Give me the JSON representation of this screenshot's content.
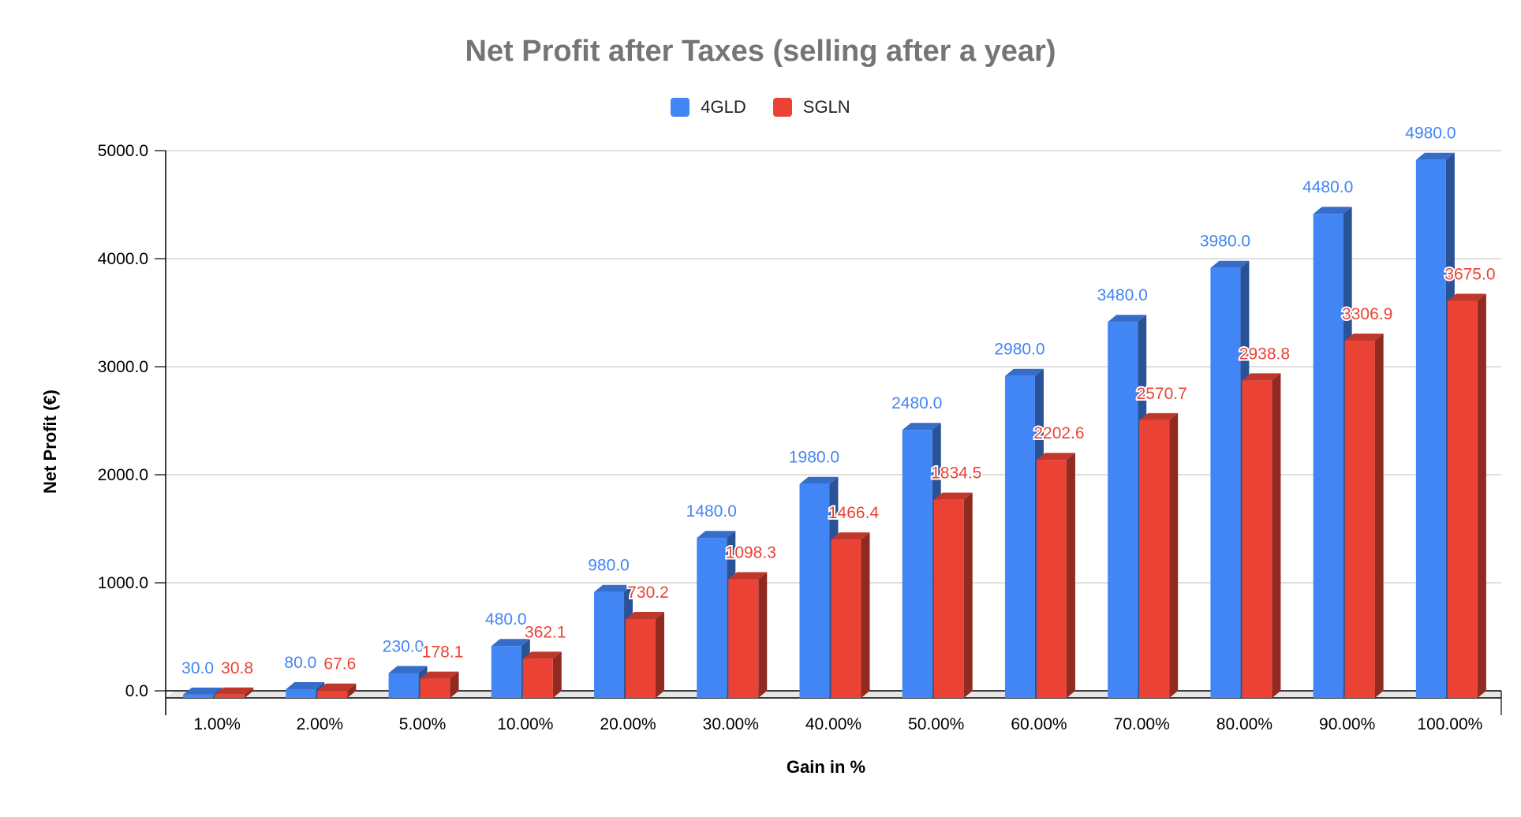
{
  "chart_data": {
    "type": "bar",
    "title": "Net Profit after Taxes (selling after a year)",
    "xlabel": "Gain in %",
    "ylabel": "Net Profit (€)",
    "ylim": [
      0,
      5000
    ],
    "yticks": [
      "0.0",
      "1000.0",
      "2000.0",
      "3000.0",
      "4000.0",
      "5000.0"
    ],
    "grid": true,
    "legend_position": "top",
    "style": "3d-columns",
    "categories": [
      "1.00%",
      "2.00%",
      "5.00%",
      "10.00%",
      "20.00%",
      "30.00%",
      "40.00%",
      "50.00%",
      "60.00%",
      "70.00%",
      "80.00%",
      "90.00%",
      "100.00%"
    ],
    "series": [
      {
        "name": "4GLD",
        "color": "#4285F4",
        "values": [
          30.0,
          80.0,
          230.0,
          480.0,
          980.0,
          1480.0,
          1980.0,
          2480.0,
          2980.0,
          3480.0,
          3980.0,
          4480.0,
          4980.0
        ],
        "labels": [
          "30.0",
          "80.0",
          "230.0",
          "480.0",
          "980.0",
          "1480.0",
          "1980.0",
          "2480.0",
          "2980.0",
          "3480.0",
          "3980.0",
          "4480.0",
          "4980.0"
        ]
      },
      {
        "name": "SGLN",
        "color": "#EA4335",
        "values": [
          30.8,
          67.6,
          178.1,
          362.1,
          730.2,
          1098.3,
          1466.4,
          1834.5,
          2202.6,
          2570.7,
          2938.8,
          3306.9,
          3675.0
        ],
        "labels": [
          "30.8",
          "67.6",
          "178.1",
          "362.1",
          "730.2",
          "1098.3",
          "1466.4",
          "1834.5",
          "2202.6",
          "2570.7",
          "2938.8",
          "3306.9",
          "3675.0"
        ]
      }
    ]
  }
}
